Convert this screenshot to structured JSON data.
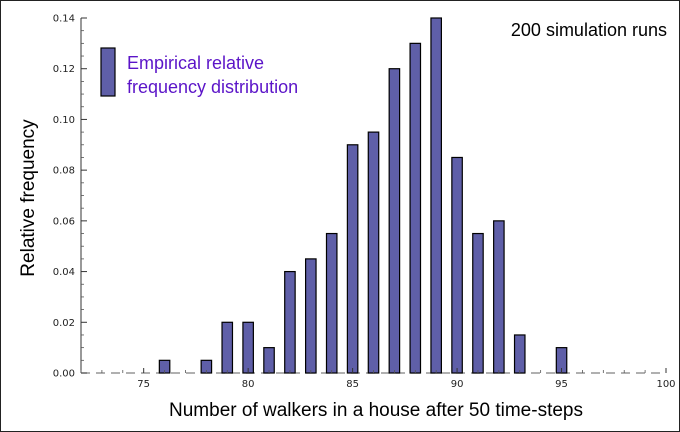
{
  "chart_data": {
    "type": "bar",
    "title": "",
    "xlabel": "Number of walkers in a house after 50 time-steps",
    "ylabel": "Relative frequency",
    "annotation": "200 simulation runs",
    "legend": {
      "label_lines": [
        "Empirical relative",
        "frequency distribution"
      ],
      "position": "top-left"
    },
    "xlim": [
      72,
      100
    ],
    "ylim": [
      0,
      0.14
    ],
    "x_ticks": [
      75,
      80,
      85,
      90,
      95,
      100
    ],
    "x_tick_labels": [
      "75",
      "80",
      "85",
      "90",
      "95",
      "100"
    ],
    "y_ticks": [
      0,
      0.02,
      0.04,
      0.06,
      0.08,
      0.1,
      0.12,
      0.14
    ],
    "y_tick_labels": [
      "0.00",
      "0.02",
      "0.04",
      "0.06",
      "0.08",
      "0.10",
      "0.12",
      "0.14"
    ],
    "grid": false,
    "x": [
      76,
      78,
      79,
      80,
      81,
      82,
      83,
      84,
      85,
      86,
      87,
      88,
      89,
      90,
      91,
      92,
      93,
      95
    ],
    "values": [
      0.005,
      0.005,
      0.02,
      0.02,
      0.01,
      0.04,
      0.045,
      0.055,
      0.09,
      0.095,
      0.12,
      0.13,
      0.14,
      0.085,
      0.055,
      0.06,
      0.015,
      0.01
    ],
    "colors": {
      "bar_fill": "#5f5fa8",
      "bar_stroke": "#000000",
      "legend_text": "#5b14c8",
      "baseline": "#808080"
    }
  }
}
